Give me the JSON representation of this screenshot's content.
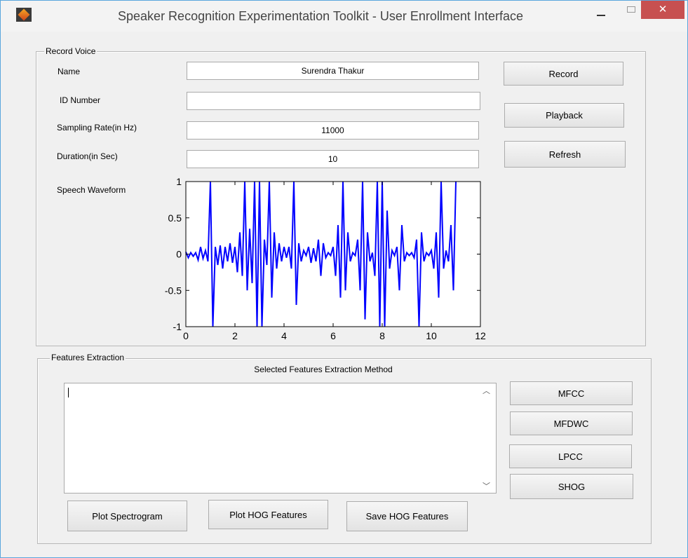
{
  "window": {
    "title": "Speaker Recognition Experimentation Toolkit - User Enrollment Interface"
  },
  "record_panel": {
    "title": "Record Voice",
    "fields": [
      {
        "label": "Name",
        "value": "Surendra Thakur"
      },
      {
        "label": "ID Number"
      },
      {
        "label": "Sampling Rate(in Hz)",
        "value": "11000"
      },
      {
        "label": "Duration(in Sec)",
        "value": "10"
      }
    ],
    "buttons": [
      "Record",
      "Playback",
      "Refresh"
    ],
    "waveform_label": "Speech Waveform"
  },
  "chart_data": {
    "type": "line",
    "x": [
      0,
      0.1,
      0.2,
      0.3,
      0.4,
      0.5,
      0.6,
      0.7,
      0.8,
      0.9,
      1,
      1.1,
      1.2,
      1.3,
      1.4,
      1.5,
      1.6,
      1.7,
      1.8,
      1.9,
      2,
      2.1,
      2.2,
      2.3,
      2.4,
      2.5,
      2.6,
      2.7,
      2.8,
      2.9,
      3,
      3.1,
      3.2,
      3.3,
      3.4,
      3.5,
      3.6,
      3.7,
      3.8,
      3.9,
      4,
      4.1,
      4.2,
      4.3,
      4.4,
      4.5,
      4.6,
      4.7,
      4.8,
      4.9,
      5,
      5.1,
      5.2,
      5.3,
      5.4,
      5.5,
      5.6,
      5.7,
      5.8,
      5.9,
      6,
      6.1,
      6.2,
      6.3,
      6.4,
      6.5,
      6.6,
      6.7,
      6.8,
      6.9,
      7,
      7.1,
      7.2,
      7.3,
      7.4,
      7.5,
      7.6,
      7.7,
      7.8,
      7.9,
      8,
      8.1,
      8.2,
      8.3,
      8.4,
      8.5,
      8.6,
      8.7,
      8.8,
      8.9,
      9,
      9.1,
      9.2,
      9.3,
      9.4,
      9.5,
      9.6,
      9.7,
      9.8,
      9.9,
      10,
      10.1,
      10.2,
      10.3,
      10.4,
      10.5,
      10.6,
      10.7,
      10.8,
      10.9,
      11
    ],
    "series": [
      {
        "color": "#0000ff",
        "values": [
          0.03,
          -0.05,
          0.02,
          -0.03,
          0.02,
          -0.08,
          0.1,
          -0.06,
          0.05,
          -0.1,
          1,
          -1,
          0.1,
          -0.15,
          0.12,
          -0.2,
          0.1,
          -0.1,
          0.15,
          -0.12,
          0.1,
          -0.25,
          0.3,
          -0.3,
          1,
          -0.5,
          0.35,
          -0.4,
          1,
          -1,
          1,
          -1,
          0.2,
          -0.15,
          1,
          -0.6,
          0.3,
          -0.2,
          0.15,
          -0.1,
          0.1,
          -0.05,
          0.1,
          -0.2,
          1,
          -0.7,
          0.15,
          -0.1,
          0.05,
          -0.02,
          0.1,
          -0.12,
          0.08,
          -0.1,
          0.2,
          -0.3,
          0.15,
          -0.05,
          0.02,
          -0.02,
          0.1,
          -0.3,
          0.4,
          -0.6,
          1,
          -0.5,
          0.3,
          -0.1,
          0.02,
          -0.02,
          0.2,
          -0.5,
          1,
          -0.9,
          0.3,
          -0.1,
          0.02,
          -0.3,
          1,
          -1,
          1,
          -1,
          0.6,
          -0.2,
          0.05,
          -0.02,
          0.1,
          -0.5,
          0.4,
          -0.1,
          0.02,
          -0.02,
          0.02,
          -0.05,
          0.2,
          -1,
          0.3,
          -0.1,
          0.02,
          -0.02,
          0.05,
          -0.2,
          0.3,
          -0.6,
          1,
          -0.2,
          0.05,
          -0.1,
          0.4,
          -0.5,
          1
        ]
      }
    ],
    "xlim": [
      0,
      12
    ],
    "xticks": [
      0,
      2,
      4,
      6,
      8,
      10,
      12
    ],
    "ylim": [
      -1,
      1
    ],
    "yticks": [
      -1,
      -0.5,
      0,
      0.5,
      1
    ]
  },
  "features_panel": {
    "title": "Features Extraction",
    "subtitle": "Selected Features Extraction Method",
    "method_buttons": [
      "MFCC",
      "MFDWC",
      "LPCC",
      "SHOG"
    ],
    "action_buttons": [
      "Plot Spectrogram",
      "Plot HOG Features",
      "Save HOG Features"
    ]
  }
}
